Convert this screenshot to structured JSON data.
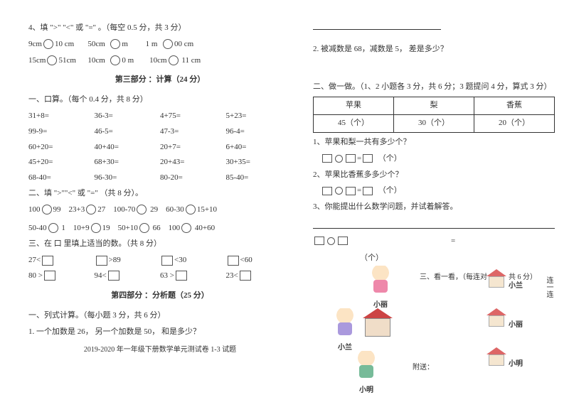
{
  "left": {
    "q4": {
      "title": "4、填 \">\" \"<\" 或 \"=\" 。（每空 0.5 分，共 3 分）",
      "r1": [
        "9cm",
        "10 cm",
        "50cm",
        "m",
        "1 m",
        "00 cm"
      ],
      "r2": [
        "15cm",
        "51cm",
        "10cm",
        "0 m",
        "10cm",
        "11 cm"
      ]
    },
    "part3": {
      "heading": "第三部分 ：计算（24 分）",
      "s1_title": "一、口算。（每个 0.4 分，共 8 分）",
      "s1": [
        [
          "31+8=",
          "36-3=",
          "4+75=",
          "5+23="
        ],
        [
          "99-9=",
          "46-5=",
          "47-3=",
          "96-4="
        ],
        [
          "60+20=",
          "40+40=",
          "20+7=",
          "6+40="
        ],
        [
          "45+20=",
          "68+30=",
          "20+43=",
          "30+35="
        ],
        [
          "68-40=",
          "96-30=",
          "80-20=",
          "85-40="
        ]
      ],
      "s2_title": "二、填 \">\"\"<\" 或 \"=\" （共 8 分）。",
      "s2r1": [
        "100",
        "99",
        "23+3",
        "27",
        "100-70",
        "29",
        "60-30",
        "15+10"
      ],
      "s2r2": [
        "50-40",
        "1",
        "10+9",
        "19",
        "50+10",
        "66",
        "100",
        "40+60"
      ],
      "s3_title": "三、在 口 里填上适当的数。（共 8 分）",
      "s3r1": [
        "27<",
        ">89",
        "<30",
        "<60"
      ],
      "s3r2": [
        "80 >",
        "94<",
        "63 >",
        "23<"
      ]
    },
    "part4": {
      "heading": "第四部分 ：分析题（25 分）",
      "s1_title": "一、列式计算。（每小题 3 分，共 6 分）",
      "q1": "1. 一个加数是 26， 另一个加数是 50， 和是多少？"
    },
    "footer": "2019-2020 年一年级下册数学单元测试卷 1-3 试题"
  },
  "right": {
    "q2": "2. 被减数是 68，减数是 5， 差是多少？",
    "table_title": "二、做一做。（1、2 小题各 3 分，共 6 分；3 题提问 4 分，算式 3 分）",
    "table": {
      "h": [
        "苹果",
        "梨",
        "香蕉"
      ],
      "r": [
        "45（个）",
        "30（个）",
        "20（个）"
      ]
    },
    "tq1": "1、苹果和梨一共有多少个？",
    "tq2": "2、苹果比香蕉多多少个？",
    "tq3": "3、你能提出什么数学问题，并试着解答。",
    "unit": "（个）",
    "matching": {
      "instruction": "三、看一看，（每连对 2 分，共 6 分）",
      "xiaolan": "小兰",
      "xiaoli": "小丽",
      "xiaoming": "小明",
      "link_word": "连一连",
      "affix": "附送："
    }
  }
}
